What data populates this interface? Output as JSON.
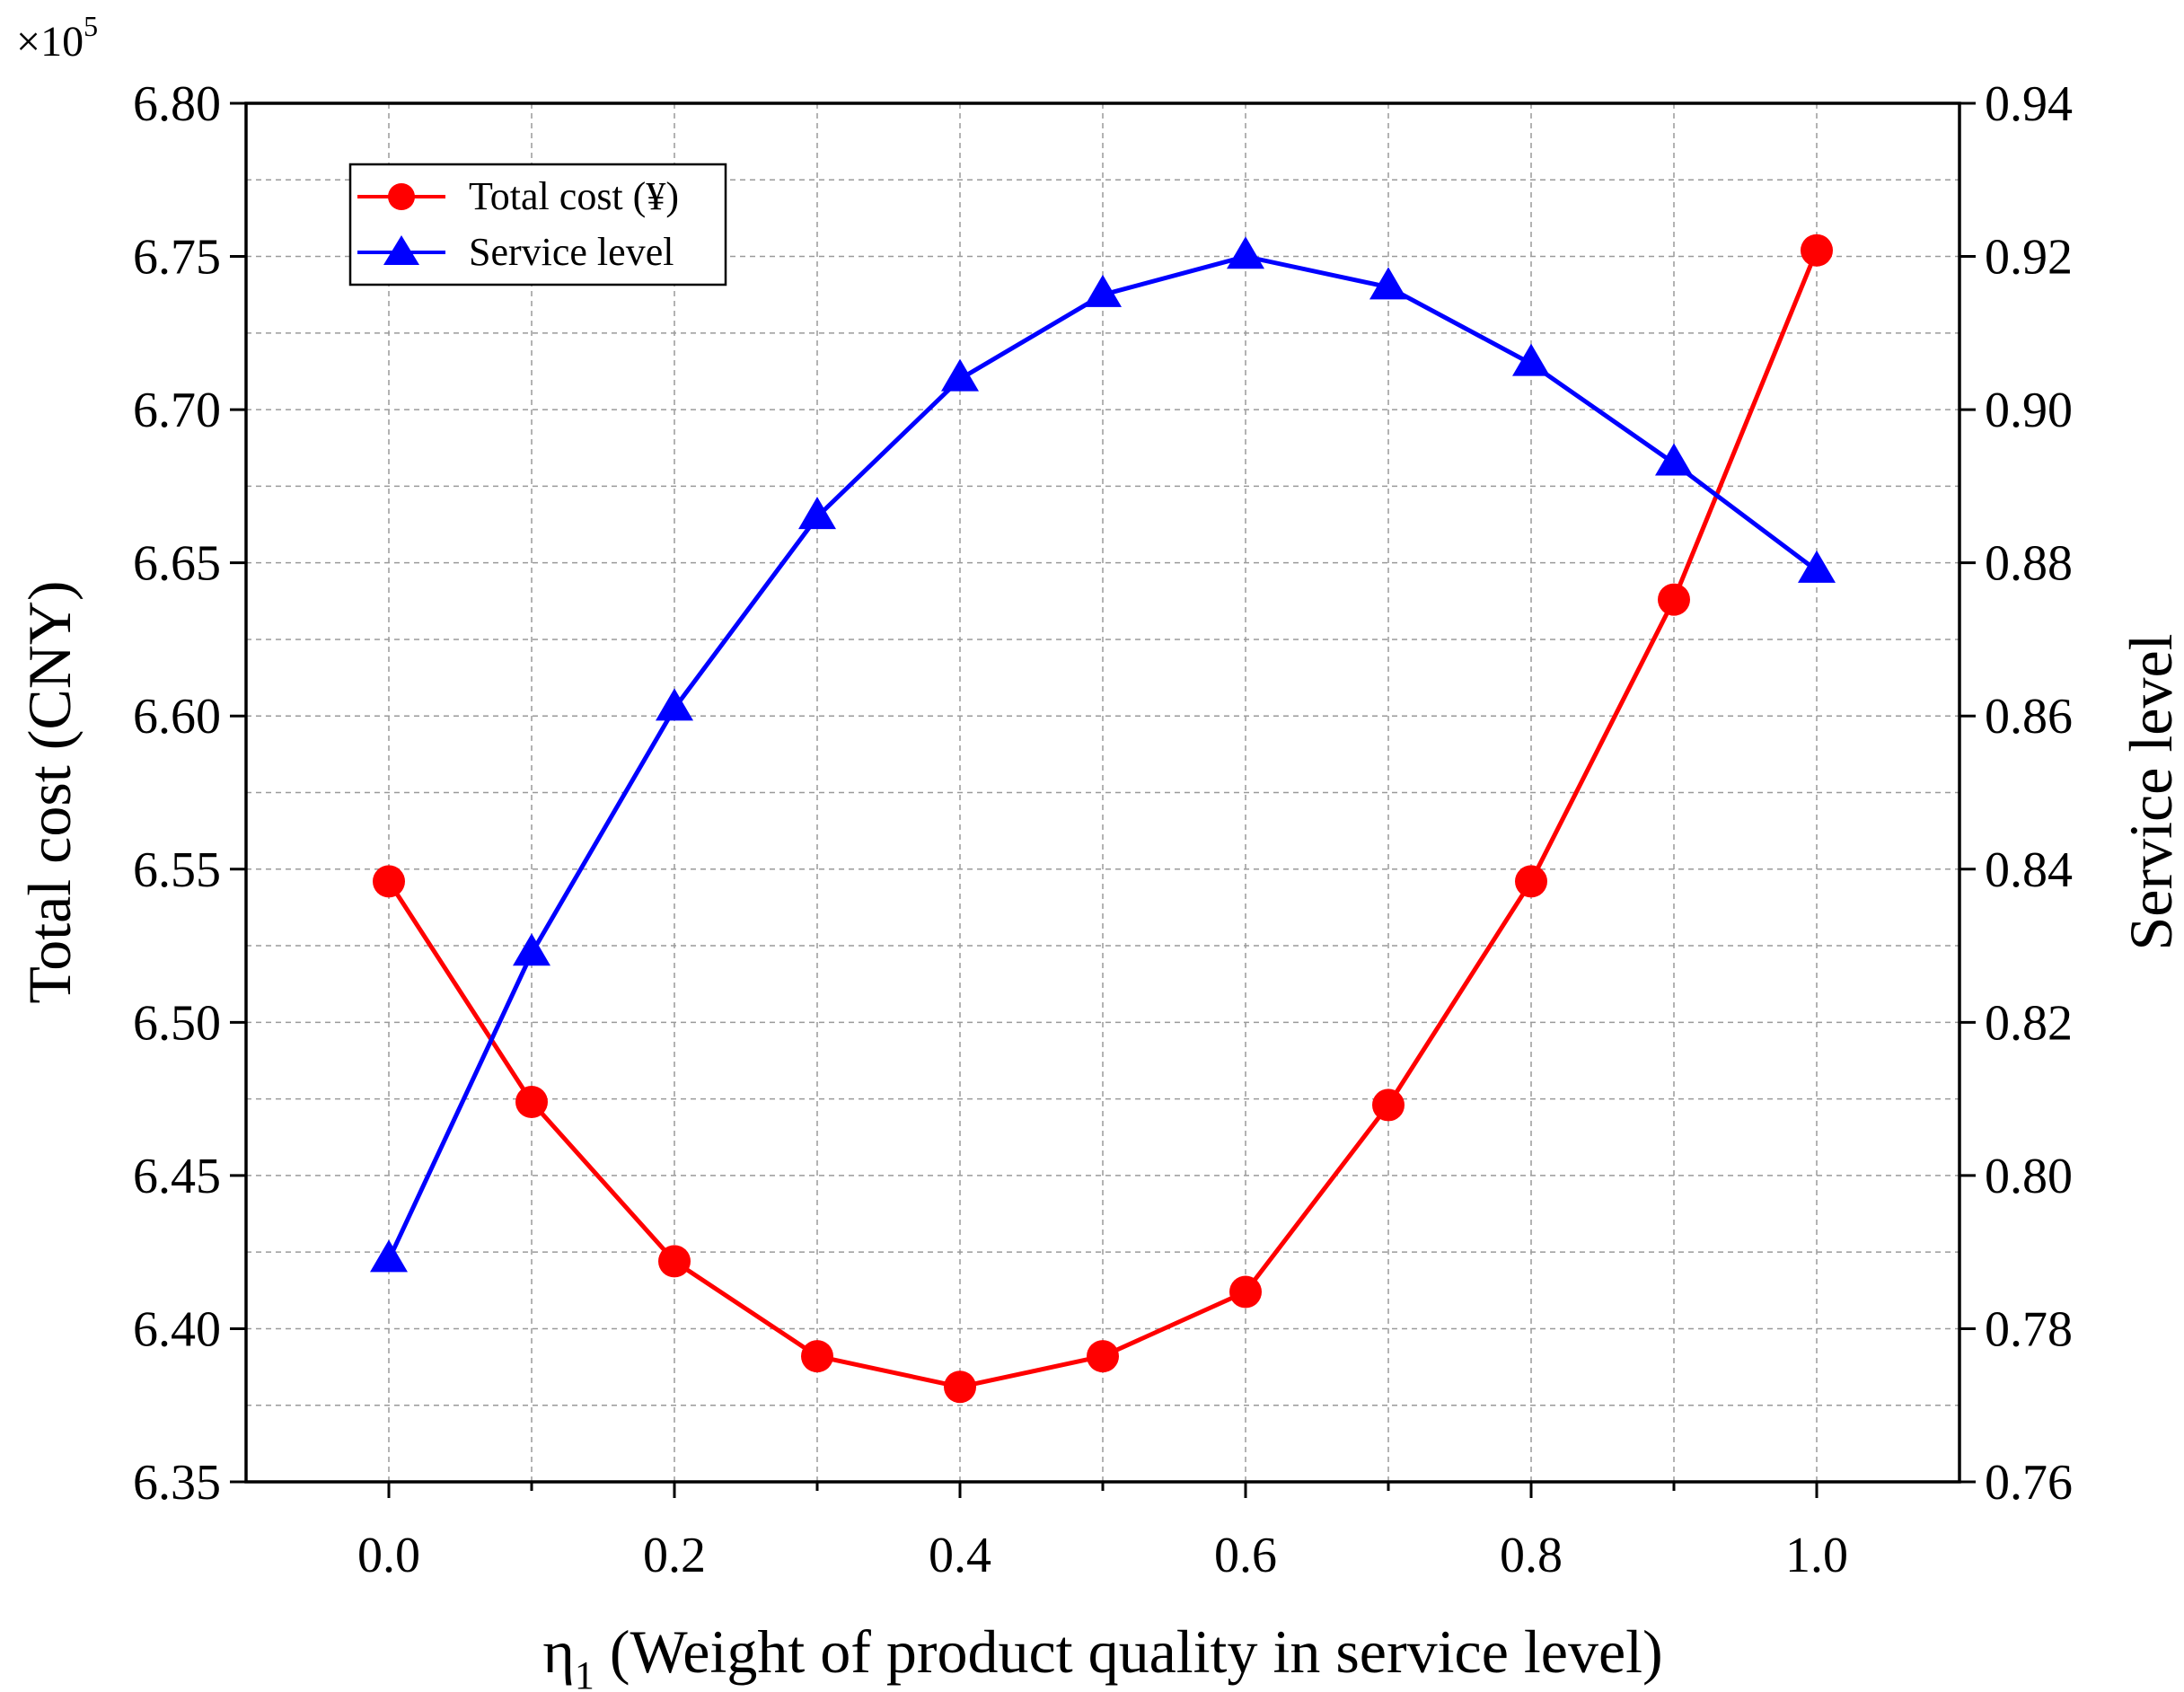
{
  "chart_data": {
    "type": "line",
    "xlabel": "η",
    "xlabel_sub": "1",
    "xlabel_rest": " (Weight of product quality in service level)",
    "ylabel_left": "Total cost (CNY)",
    "ylabel_right": "Service level",
    "multiplier_prefix": "×10",
    "multiplier_exp": "5",
    "x": [
      0.0,
      0.1,
      0.2,
      0.3,
      0.4,
      0.5,
      0.6,
      0.7,
      0.8,
      0.9,
      1.0
    ],
    "xlim": [
      -0.1,
      1.1
    ],
    "x_ticks": [
      0.0,
      0.2,
      0.4,
      0.6,
      0.8,
      1.0
    ],
    "x_tick_labels": [
      "0.0",
      "0.2",
      "0.4",
      "0.6",
      "0.8",
      "1.0"
    ],
    "ylim_left": [
      6.35,
      6.8
    ],
    "y_left_ticks": [
      6.35,
      6.4,
      6.45,
      6.5,
      6.55,
      6.6,
      6.65,
      6.7,
      6.75,
      6.8
    ],
    "y_left_tick_labels": [
      "6.35",
      "6.40",
      "6.45",
      "6.50",
      "6.55",
      "6.60",
      "6.65",
      "6.70",
      "6.75",
      "6.80"
    ],
    "ylim_right": [
      0.76,
      0.94
    ],
    "y_right_ticks": [
      0.76,
      0.78,
      0.8,
      0.82,
      0.84,
      0.86,
      0.88,
      0.9,
      0.92,
      0.94
    ],
    "y_right_tick_labels": [
      "0.76",
      "0.78",
      "0.80",
      "0.82",
      "0.84",
      "0.86",
      "0.88",
      "0.90",
      "0.92",
      "0.94"
    ],
    "grid": true,
    "legend_position": "top-left",
    "series": [
      {
        "name": "Total cost (¥)",
        "axis": "left",
        "marker": "circle",
        "color": "#ff0000",
        "values": [
          6.546,
          6.474,
          6.422,
          6.391,
          6.381,
          6.391,
          6.412,
          6.473,
          6.546,
          6.638,
          6.752
        ]
      },
      {
        "name": "Service level",
        "axis": "right",
        "marker": "triangle",
        "color": "#0000ff",
        "values": [
          0.789,
          0.829,
          0.861,
          0.886,
          0.904,
          0.915,
          0.92,
          0.916,
          0.906,
          0.893,
          0.879
        ]
      }
    ]
  }
}
